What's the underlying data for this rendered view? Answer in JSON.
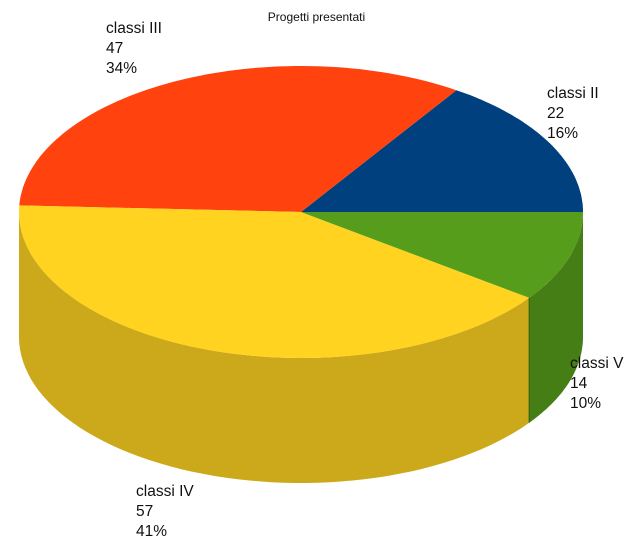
{
  "chart_data": {
    "type": "pie",
    "title": "Progetti presentati",
    "series": [
      {
        "name": "classi II",
        "value": 22,
        "percent": "16%",
        "color": "#00407e"
      },
      {
        "name": "classi III",
        "value": 47,
        "percent": "34%",
        "color": "#ff420e"
      },
      {
        "name": "classi IV",
        "value": 57,
        "percent": "41%",
        "color": "#ffd320"
      },
      {
        "name": "classi V",
        "value": 14,
        "percent": "10%",
        "color": "#579d1c"
      }
    ],
    "three_d": true
  }
}
